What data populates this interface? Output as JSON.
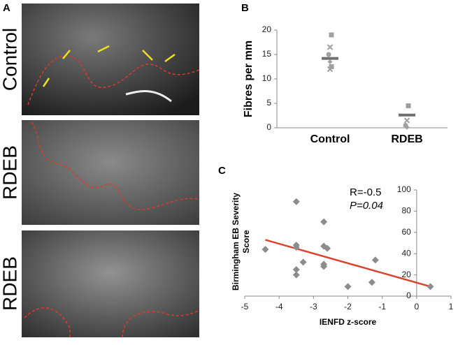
{
  "panels": {
    "labels": [
      "A",
      "B",
      "C"
    ],
    "image_labels": [
      "Control",
      "RDEB",
      "RDEB"
    ]
  },
  "chart_data": [
    {
      "type": "dot",
      "ylabel": "Fibres per mm",
      "categories": [
        "Control",
        "RDEB"
      ],
      "values": [
        [
          19,
          16.5,
          15,
          13.5,
          12.5,
          12
        ],
        [
          4.5,
          1.5,
          0.5,
          0.1
        ]
      ],
      "means": [
        14.2,
        2.6
      ],
      "color": "#a0a0a0",
      "mean_color": "#707070",
      "ylim": [
        0,
        20
      ],
      "yticks": [
        0,
        5,
        10,
        15,
        20
      ]
    },
    {
      "type": "scatter",
      "xlabel": "IENFD z-score",
      "ylabel": [
        "Birmingham EB Severity",
        "Score"
      ],
      "annotations": [
        "R=-0.5",
        "P=0.04"
      ],
      "x": [
        -4.4,
        -3.5,
        -3.5,
        -3.5,
        -3.5,
        -3.5,
        -3.3,
        -2.7,
        -2.7,
        -2.6,
        -2.7,
        -2.7,
        -2.0,
        -1.2,
        -1.3,
        0.4
      ],
      "y": [
        44,
        89,
        48,
        46,
        25,
        20,
        32,
        70,
        47,
        45,
        30,
        28,
        9,
        34,
        13,
        9
      ],
      "trend": {
        "x": [
          -4.4,
          0.4
        ],
        "y": [
          53,
          9
        ],
        "color": "#d9432b"
      },
      "color": "#8c8c8c",
      "xlim": [
        -5,
        1
      ],
      "ylim": [
        0,
        100
      ],
      "xticks": [
        -5,
        -4,
        -3,
        -2,
        -1,
        0,
        1
      ],
      "yticks": [
        0,
        20,
        40,
        60,
        80,
        100
      ]
    }
  ]
}
